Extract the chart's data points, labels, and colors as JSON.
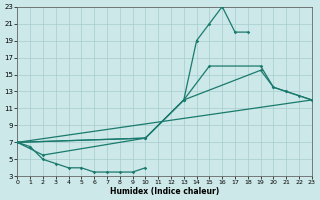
{
  "xlabel": "Humidex (Indice chaleur)",
  "bg_color": "#cce8e8",
  "grid_color": "#a8cccc",
  "line_color": "#1a7a6e",
  "xlim": [
    0,
    23
  ],
  "ylim": [
    3,
    23
  ],
  "xticks": [
    0,
    1,
    2,
    3,
    4,
    5,
    6,
    7,
    8,
    9,
    10,
    11,
    12,
    13,
    14,
    15,
    16,
    17,
    18,
    19,
    20,
    21,
    22,
    23
  ],
  "yticks": [
    3,
    5,
    7,
    9,
    11,
    13,
    15,
    17,
    19,
    21,
    23
  ],
  "curve_bottom": {
    "x": [
      0,
      1,
      2,
      3,
      4,
      5,
      6,
      7,
      8,
      9,
      10
    ],
    "y": [
      7,
      6.5,
      5,
      4.5,
      4,
      4,
      3.5,
      3.5,
      3.5,
      3.5,
      4
    ]
  },
  "curve_low": {
    "x": [
      0,
      2,
      10,
      13,
      19,
      20,
      21,
      23
    ],
    "y": [
      7,
      5.5,
      7.5,
      12,
      15.5,
      13.5,
      13,
      12
    ]
  },
  "curve_mid": {
    "x": [
      0,
      10,
      13,
      15,
      19,
      20,
      21,
      22,
      23
    ],
    "y": [
      7,
      7.5,
      12,
      16,
      16,
      13.5,
      13,
      12.5,
      12
    ]
  },
  "curve_high": {
    "x": [
      0,
      10,
      13,
      14,
      15,
      16,
      17,
      18
    ],
    "y": [
      7,
      7.5,
      12,
      19,
      21,
      23,
      20,
      20
    ]
  },
  "curve_linear": {
    "x": [
      0,
      23
    ],
    "y": [
      7,
      12
    ]
  }
}
